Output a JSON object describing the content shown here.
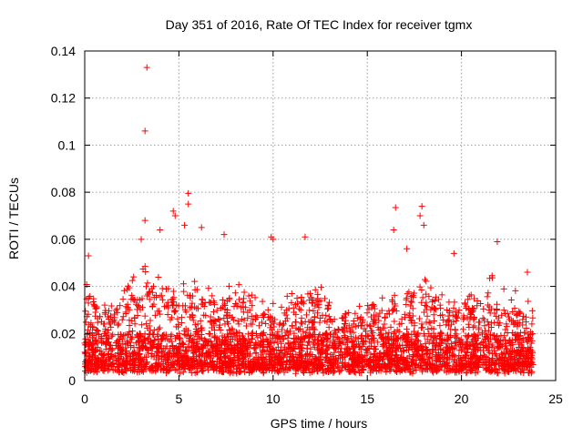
{
  "chart_data": {
    "type": "scatter",
    "title": "Day 351 of 2016, Rate Of TEC Index for receiver tgmx",
    "xlabel": "GPS time / hours",
    "ylabel": "ROTI / TECUs",
    "xlim": [
      0,
      25
    ],
    "ylim": [
      0,
      0.14
    ],
    "xticks": [
      0,
      5,
      10,
      15,
      20,
      25
    ],
    "xtick_labels": [
      "0",
      "5",
      "10",
      "15",
      "20",
      "25"
    ],
    "yticks": [
      0,
      0.02,
      0.04,
      0.06,
      0.08,
      0.1,
      0.12,
      0.14
    ],
    "ytick_labels": [
      "0",
      "0.02",
      "0.04",
      "0.06",
      "0.08",
      "0.1",
      "0.12",
      "0.14"
    ],
    "grid": true,
    "marker": "+",
    "color": "#ff0000",
    "series": [
      {
        "name": "ROTI",
        "x_range": [
          0,
          23.8
        ],
        "typical_range": [
          0.003,
          0.03
        ],
        "outliers": [
          {
            "x": 3.3,
            "y": 0.133
          },
          {
            "x": 3.2,
            "y": 0.106
          },
          {
            "x": 5.5,
            "y": 0.0795
          },
          {
            "x": 5.5,
            "y": 0.075
          },
          {
            "x": 4.7,
            "y": 0.072
          },
          {
            "x": 4.8,
            "y": 0.07
          },
          {
            "x": 16.5,
            "y": 0.0735
          },
          {
            "x": 17.9,
            "y": 0.074
          },
          {
            "x": 17.8,
            "y": 0.07
          },
          {
            "x": 3.2,
            "y": 0.068
          },
          {
            "x": 18.0,
            "y": 0.066
          },
          {
            "x": 16.4,
            "y": 0.064
          },
          {
            "x": 5.3,
            "y": 0.066
          },
          {
            "x": 6.2,
            "y": 0.065
          },
          {
            "x": 4.0,
            "y": 0.064
          },
          {
            "x": 7.4,
            "y": 0.062
          },
          {
            "x": 11.7,
            "y": 0.061
          },
          {
            "x": 9.9,
            "y": 0.061
          },
          {
            "x": 10.0,
            "y": 0.06
          },
          {
            "x": 3.0,
            "y": 0.06
          },
          {
            "x": 21.9,
            "y": 0.059
          },
          {
            "x": 0.2,
            "y": 0.053
          },
          {
            "x": 17.1,
            "y": 0.056
          },
          {
            "x": 19.6,
            "y": 0.054
          },
          {
            "x": 23.5,
            "y": 0.046
          }
        ]
      }
    ]
  }
}
